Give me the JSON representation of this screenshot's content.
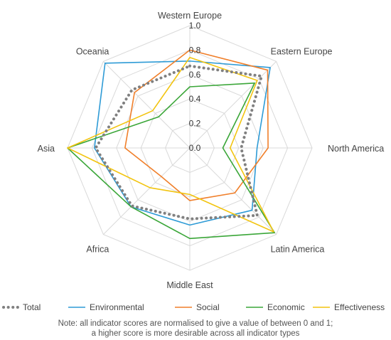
{
  "chart_data": {
    "type": "radar",
    "categories": [
      "Western Europe",
      "Eastern Europe",
      "North America",
      "Latin America",
      "Middle East",
      "Africa",
      "Asia",
      "Oceania"
    ],
    "rlim": [
      0,
      1.0
    ],
    "ticks": [
      "0.0",
      "0.2",
      "0.4",
      "0.6",
      "0.8",
      "1.0"
    ],
    "tick_values": [
      0,
      0.2,
      0.4,
      0.6,
      0.8,
      1.0
    ],
    "series": [
      {
        "name": "Total",
        "color": "#808080",
        "style": "dotted",
        "values": [
          0.67,
          0.83,
          0.42,
          0.78,
          0.58,
          0.67,
          0.77,
          0.67
        ]
      },
      {
        "name": "Environmental",
        "color": "#2E9BD6",
        "style": "solid",
        "values": [
          0.71,
          0.93,
          0.55,
          0.72,
          0.63,
          0.68,
          0.78,
          0.98
        ]
      },
      {
        "name": "Social",
        "color": "#F07F2A",
        "style": "solid",
        "values": [
          0.8,
          0.9,
          0.64,
          0.52,
          0.43,
          0.33,
          0.53,
          0.64
        ]
      },
      {
        "name": "Economic",
        "color": "#3AA638",
        "style": "solid",
        "values": [
          0.5,
          0.75,
          0.27,
          0.98,
          0.74,
          0.68,
          1.0,
          0.36
        ]
      },
      {
        "name": "Effectiveness",
        "color": "#F2C40F",
        "style": "solid",
        "values": [
          0.74,
          0.78,
          0.33,
          0.97,
          0.38,
          0.46,
          1.0,
          0.43
        ]
      }
    ],
    "legend_position": "bottom",
    "grid": true,
    "note": [
      "Note: all indicator scores are normalised to give a value of between 0 and 1;",
      "a higher score is more desirable across all indicator types"
    ]
  }
}
